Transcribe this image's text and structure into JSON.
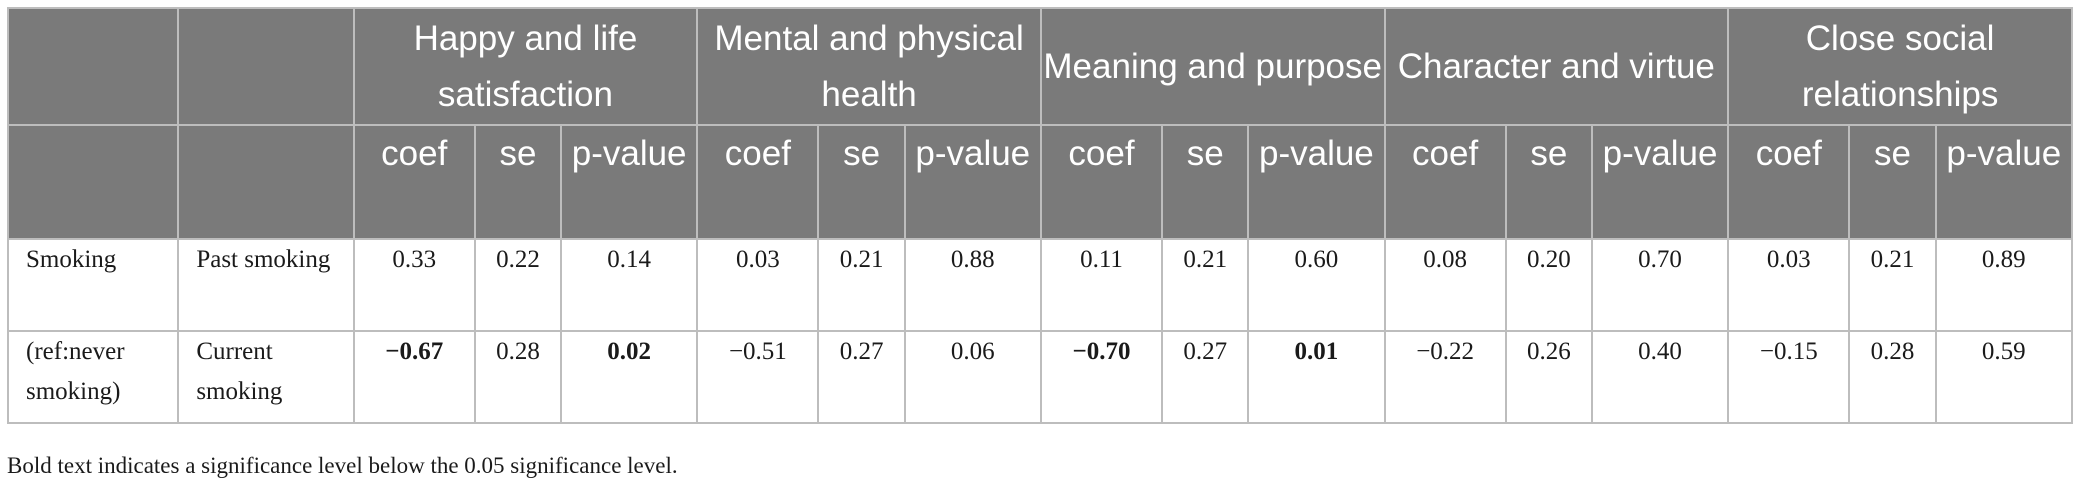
{
  "table": {
    "groups": [
      {
        "label": "Happy and life satisfaction"
      },
      {
        "label": "Mental and physical health"
      },
      {
        "label": "Meaning and purpose"
      },
      {
        "label": "Character and virtue"
      },
      {
        "label": "Close social relationships"
      }
    ],
    "subheaders": {
      "coef": "coef",
      "se": "se",
      "pvalue": "p-value"
    },
    "rows": [
      {
        "col1": "Smoking",
        "col2": "Past smoking",
        "cells": [
          "0.33",
          "0.22",
          "0.14",
          "0.03",
          "0.21",
          "0.88",
          "0.11",
          "0.21",
          "0.60",
          "0.08",
          "0.20",
          "0.70",
          "0.03",
          "0.21",
          "0.89"
        ],
        "bold": [
          false,
          false,
          false,
          false,
          false,
          false,
          false,
          false,
          false,
          false,
          false,
          false,
          false,
          false,
          false
        ]
      },
      {
        "col1": "(ref:never smoking)",
        "col2": "Current smoking",
        "cells": [
          "−0.67",
          "0.28",
          "0.02",
          "−0.51",
          "0.27",
          "0.06",
          "−0.70",
          "0.27",
          "0.01",
          "−0.22",
          "0.26",
          "0.40",
          "−0.15",
          "0.28",
          "0.59"
        ],
        "bold": [
          true,
          false,
          true,
          false,
          false,
          false,
          true,
          false,
          true,
          false,
          false,
          false,
          false,
          false,
          false
        ]
      }
    ]
  },
  "footnote": "Bold text indicates a significance level below the 0.05 significance level."
}
